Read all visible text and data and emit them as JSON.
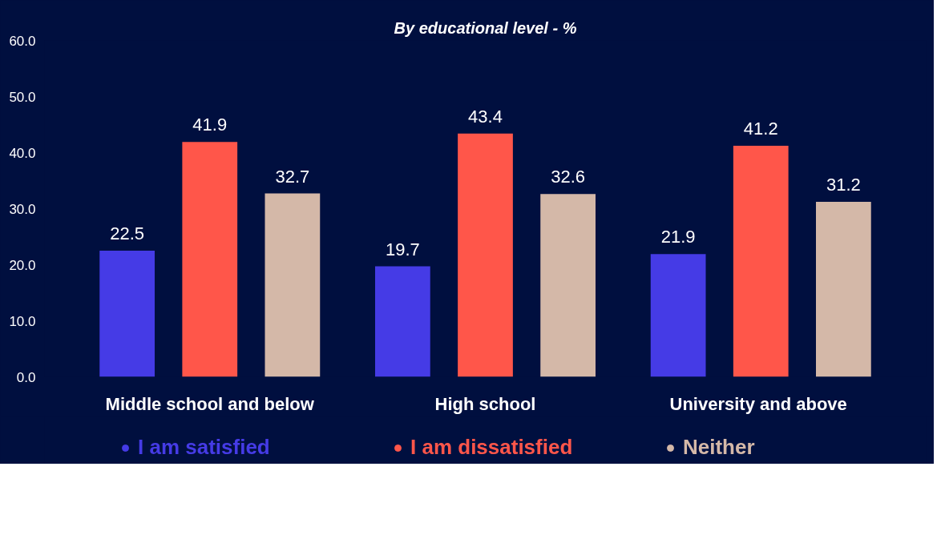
{
  "chart_data": {
    "type": "bar",
    "title": "By educational level - %",
    "categories": [
      "Middle school and below",
      "High school",
      "University  and above"
    ],
    "series": [
      {
        "name": "I am satisfied",
        "color": "#453be6",
        "values": [
          22.5,
          19.7,
          21.9
        ]
      },
      {
        "name": "I am dissatisfied",
        "color": "#ff564a",
        "values": [
          41.9,
          43.4,
          41.2
        ]
      },
      {
        "name": "Neither",
        "color": "#d4b8a8",
        "values": [
          32.7,
          32.6,
          31.2
        ]
      }
    ],
    "ylim": [
      0,
      60
    ],
    "yticks": [
      {
        "value": 0,
        "label": "0.0"
      },
      {
        "value": 10,
        "label": "10.0"
      },
      {
        "value": 20,
        "label": "20.0"
      },
      {
        "value": 30,
        "label": "30.0"
      },
      {
        "value": 40,
        "label": "40.0"
      },
      {
        "value": 50,
        "label": "50.0"
      },
      {
        "value": 60,
        "label": "60.0"
      }
    ],
    "data_labels": true,
    "legend": "bottom",
    "grid": false
  }
}
